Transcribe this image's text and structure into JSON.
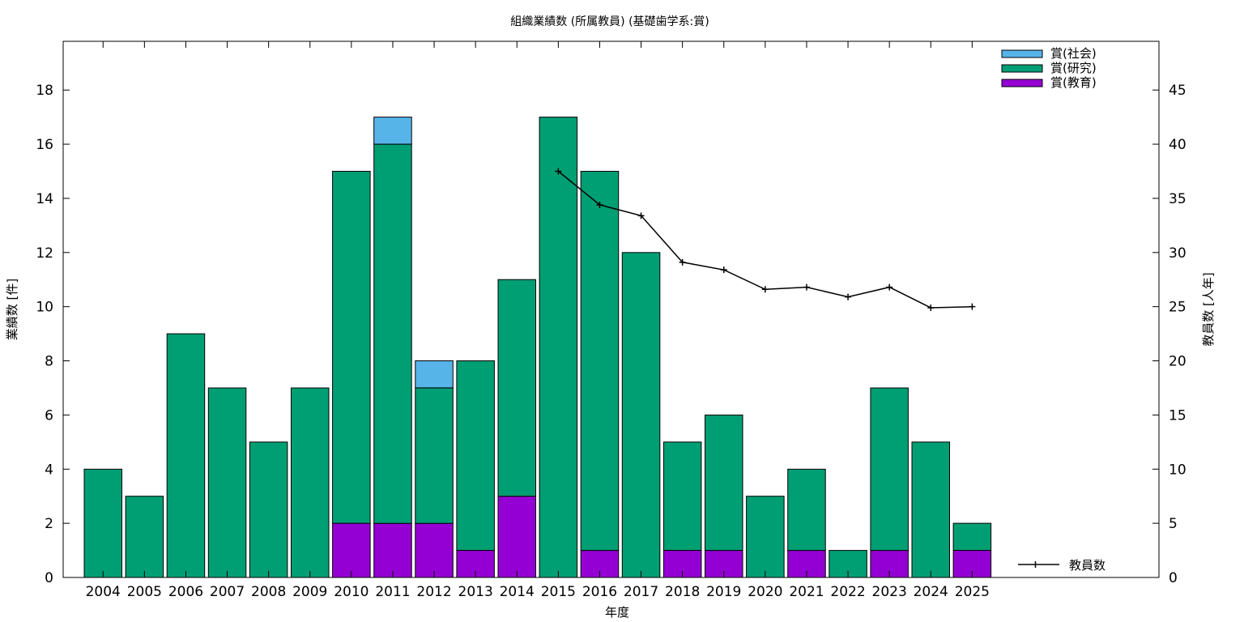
{
  "chart_data": {
    "type": "bar",
    "title": "組織業績数 (所属教員) (基礎歯学系:賞)",
    "xlabel": "年度",
    "ylabel": "業績数 [件]",
    "y2label": "教員数 [人年]",
    "categories": [
      "2004",
      "2005",
      "2006",
      "2007",
      "2008",
      "2009",
      "2010",
      "2011",
      "2012",
      "2013",
      "2014",
      "2015",
      "2016",
      "2017",
      "2018",
      "2019",
      "2020",
      "2021",
      "2022",
      "2023",
      "2024",
      "2025"
    ],
    "ylim": [
      0,
      19.8
    ],
    "y2lim": [
      0,
      49.5
    ],
    "yticks": [
      0,
      2,
      4,
      6,
      8,
      10,
      12,
      14,
      16,
      18
    ],
    "y2ticks": [
      0,
      5,
      10,
      15,
      20,
      25,
      30,
      35,
      40,
      45
    ],
    "stacked": true,
    "grid": false,
    "legend_position": "top-right",
    "series": [
      {
        "name": "賞(教育)",
        "color": "#9400d3",
        "values": [
          0,
          0,
          0,
          0,
          0,
          0,
          2,
          2,
          2,
          1,
          3,
          0,
          1,
          0,
          1,
          1,
          0,
          1,
          0,
          1,
          0,
          1
        ]
      },
      {
        "name": "賞(研究)",
        "color": "#009e73",
        "values": [
          4,
          3,
          9,
          7,
          5,
          7,
          13,
          14,
          5,
          7,
          8,
          17,
          14,
          12,
          4,
          5,
          3,
          3,
          1,
          6,
          5,
          1
        ]
      },
      {
        "name": "賞(社会)",
        "color": "#56b4e9",
        "values": [
          0,
          0,
          0,
          0,
          0,
          0,
          0,
          1,
          1,
          0,
          0,
          0,
          0,
          0,
          0,
          0,
          0,
          0,
          0,
          0,
          0,
          0
        ]
      }
    ],
    "line": {
      "name": "教員数",
      "color": "#000000",
      "axis": "y2",
      "x": [
        "2015",
        "2016",
        "2017",
        "2018",
        "2019",
        "2020",
        "2021",
        "2022",
        "2023",
        "2024",
        "2025"
      ],
      "values": [
        37.5,
        34.4,
        33.4,
        29.1,
        28.4,
        26.6,
        26.8,
        25.9,
        26.8,
        24.9,
        25.0
      ]
    }
  }
}
